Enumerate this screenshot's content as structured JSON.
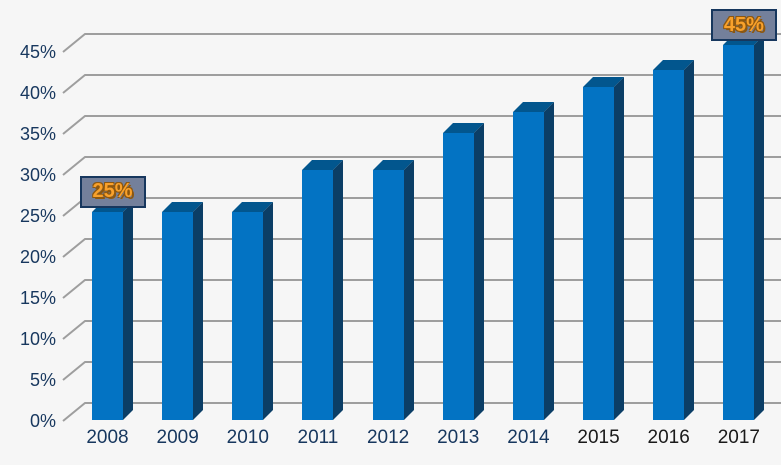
{
  "chart_data": {
    "type": "bar",
    "variant": "3d-column",
    "title": "",
    "xlabel": "",
    "ylabel": "",
    "categories": [
      "2008",
      "2009",
      "2010",
      "2011",
      "2012",
      "2013",
      "2014",
      "2015",
      "2016",
      "2017"
    ],
    "values": [
      25,
      25,
      25,
      30,
      30,
      34.5,
      37,
      40,
      42,
      45
    ],
    "unit": "%",
    "ylim": [
      0,
      45
    ],
    "grid": true,
    "legend": false,
    "y_ticks": [
      {
        "value": 0,
        "label": "0%"
      },
      {
        "value": 5,
        "label": "5%"
      },
      {
        "value": 10,
        "label": "10%"
      },
      {
        "value": 15,
        "label": "15%"
      },
      {
        "value": 20,
        "label": "20%"
      },
      {
        "value": 25,
        "label": "25%"
      },
      {
        "value": 30,
        "label": "30%"
      },
      {
        "value": 35,
        "label": "35%"
      },
      {
        "value": 40,
        "label": "40%"
      },
      {
        "value": 45,
        "label": "45%"
      }
    ],
    "data_labels": [
      {
        "category": "2008",
        "index": 0,
        "text": "25%"
      },
      {
        "category": "2017",
        "index": 9,
        "text": "45%"
      }
    ],
    "x_tick_colors": [
      "#17375E",
      "#17375E",
      "#17375E",
      "#17375E",
      "#17375E",
      "#17375E",
      "#17375E",
      "#1A1A1A",
      "#1A1A1A",
      "#1A1A1A"
    ],
    "colors": {
      "bar_front": "#0373C3",
      "bar_top": "#02568E",
      "bar_side": "#0B3E66",
      "gridline": "#9E9E9E",
      "background": "#F6F6F6",
      "axis_text": "#17375E",
      "callout_fill": "#74809B",
      "callout_border": "#17375E",
      "callout_text": "#F9A12B"
    }
  }
}
